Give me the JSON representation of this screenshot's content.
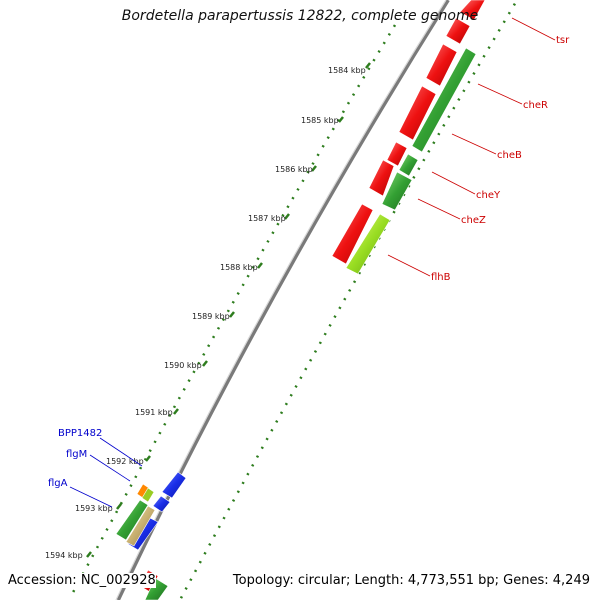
{
  "title": "Bordetella parapertussis 12822, complete genome",
  "footer": {
    "accession": "Accession: NC_002928",
    "topology": "Topology: circular; Length: 4,773,551 bp; Genes: 4,249"
  },
  "ticks": [
    {
      "label": "1584 kbp"
    },
    {
      "label": "1585 kbp"
    },
    {
      "label": "1586 kbp"
    },
    {
      "label": "1587 kbp"
    },
    {
      "label": "1588 kbp"
    },
    {
      "label": "1589 kbp"
    },
    {
      "label": "1590 kbp"
    },
    {
      "label": "1591 kbp"
    },
    {
      "label": "1592 kbp"
    },
    {
      "label": "1593 kbp"
    },
    {
      "label": "1594 kbp"
    }
  ],
  "genes_right": [
    {
      "label": "tsr",
      "color": "#cc0000"
    },
    {
      "label": "cheR",
      "color": "#cc0000"
    },
    {
      "label": "cheB",
      "color": "#cc0000"
    },
    {
      "label": "cheY",
      "color": "#cc0000"
    },
    {
      "label": "cheZ",
      "color": "#cc0000"
    },
    {
      "label": "flhB",
      "color": "#cc0000"
    }
  ],
  "genes_left": [
    {
      "label": "BPP1482",
      "color": "#0000cc"
    },
    {
      "label": "flgM",
      "color": "#0000cc"
    },
    {
      "label": "flgA",
      "color": "#0000cc"
    }
  ],
  "colors": {
    "forward_cds": "#ee1111",
    "reverse_cds": "#3aa63a",
    "gene_blue": "#1a2ee8",
    "backbone": "#8a8a8a",
    "tick": "#2e7d1e"
  }
}
